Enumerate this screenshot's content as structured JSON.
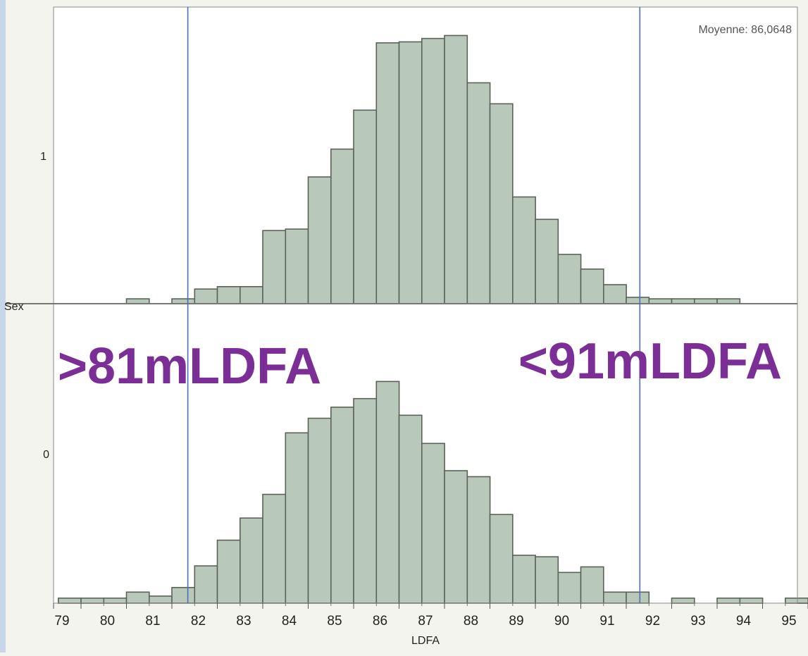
{
  "chart_data": {
    "type": "bar",
    "title": "",
    "xlabel": "LDFA",
    "ylabel": "Sex",
    "xlim": [
      78.3,
      95
    ],
    "x_ticks": [
      "79",
      "80",
      "81",
      "82",
      "83",
      "84",
      "85",
      "86",
      "87",
      "88",
      "89",
      "90",
      "91",
      "92",
      "93",
      "94",
      "95"
    ],
    "bin_width": 0.5,
    "grid": false,
    "panels": [
      {
        "group_label": "1",
        "annotation": "Moyenne: 86,0648",
        "bins": [
          {
            "x0": 80.0,
            "value": 1
          },
          {
            "x0": 81.0,
            "value": 1
          },
          {
            "x0": 81.5,
            "value": 3
          },
          {
            "x0": 82.0,
            "value": 3.5
          },
          {
            "x0": 82.5,
            "value": 3.5
          },
          {
            "x0": 83.0,
            "value": 15
          },
          {
            "x0": 83.5,
            "value": 15.3
          },
          {
            "x0": 84.0,
            "value": 26
          },
          {
            "x0": 84.5,
            "value": 31.7
          },
          {
            "x0": 85.0,
            "value": 39.7
          },
          {
            "x0": 85.5,
            "value": 53.5
          },
          {
            "x0": 86.0,
            "value": 53.7
          },
          {
            "x0": 86.5,
            "value": 54.4
          },
          {
            "x0": 87.0,
            "value": 55
          },
          {
            "x0": 87.5,
            "value": 45.3
          },
          {
            "x0": 88.0,
            "value": 41
          },
          {
            "x0": 88.5,
            "value": 21.9
          },
          {
            "x0": 89.0,
            "value": 17.3
          },
          {
            "x0": 89.5,
            "value": 10.1
          },
          {
            "x0": 90.0,
            "value": 7.1
          },
          {
            "x0": 90.5,
            "value": 3.9
          },
          {
            "x0": 91.0,
            "value": 1.3
          },
          {
            "x0": 91.5,
            "value": 1
          },
          {
            "x0": 92.0,
            "value": 1
          },
          {
            "x0": 92.5,
            "value": 1
          },
          {
            "x0": 93.0,
            "value": 1
          }
        ]
      },
      {
        "group_label": "0",
        "annotation": "",
        "bins": [
          {
            "x0": 78.5,
            "value": 1
          },
          {
            "x0": 79.0,
            "value": 1
          },
          {
            "x0": 79.5,
            "value": 1
          },
          {
            "x0": 80.0,
            "value": 2.2
          },
          {
            "x0": 80.5,
            "value": 1.4
          },
          {
            "x0": 81.0,
            "value": 3.1
          },
          {
            "x0": 81.5,
            "value": 7.4
          },
          {
            "x0": 82.0,
            "value": 12.5
          },
          {
            "x0": 82.5,
            "value": 16.9
          },
          {
            "x0": 83.0,
            "value": 21.6
          },
          {
            "x0": 83.5,
            "value": 33.8
          },
          {
            "x0": 84.0,
            "value": 36.7
          },
          {
            "x0": 84.5,
            "value": 38.9
          },
          {
            "x0": 85.0,
            "value": 40.6
          },
          {
            "x0": 85.5,
            "value": 44
          },
          {
            "x0": 86.0,
            "value": 37.3
          },
          {
            "x0": 86.5,
            "value": 31.7
          },
          {
            "x0": 87.0,
            "value": 26.3
          },
          {
            "x0": 87.5,
            "value": 25.1
          },
          {
            "x0": 88.0,
            "value": 17.6
          },
          {
            "x0": 88.5,
            "value": 9.5
          },
          {
            "x0": 89.0,
            "value": 9.2
          },
          {
            "x0": 89.5,
            "value": 6.1
          },
          {
            "x0": 90.0,
            "value": 7.2
          },
          {
            "x0": 90.5,
            "value": 2.2
          },
          {
            "x0": 91.0,
            "value": 2.2
          },
          {
            "x0": 92.0,
            "value": 1
          },
          {
            "x0": 93.0,
            "value": 1
          },
          {
            "x0": 93.5,
            "value": 1
          },
          {
            "x0": 94.5,
            "value": 1
          }
        ]
      }
    ],
    "reference_lines": [
      81.35,
      91.3
    ],
    "overlay_labels": [
      ">81mLDFA",
      "<91mLDFA"
    ],
    "colors": {
      "bar_fill": "#b8c9bb",
      "bar_stroke": "#5c6258",
      "ref_line": "#4a72b0",
      "overlay_text": "#7a2e96",
      "frame": "#888888",
      "left_strip": "#c8d6ea"
    }
  }
}
